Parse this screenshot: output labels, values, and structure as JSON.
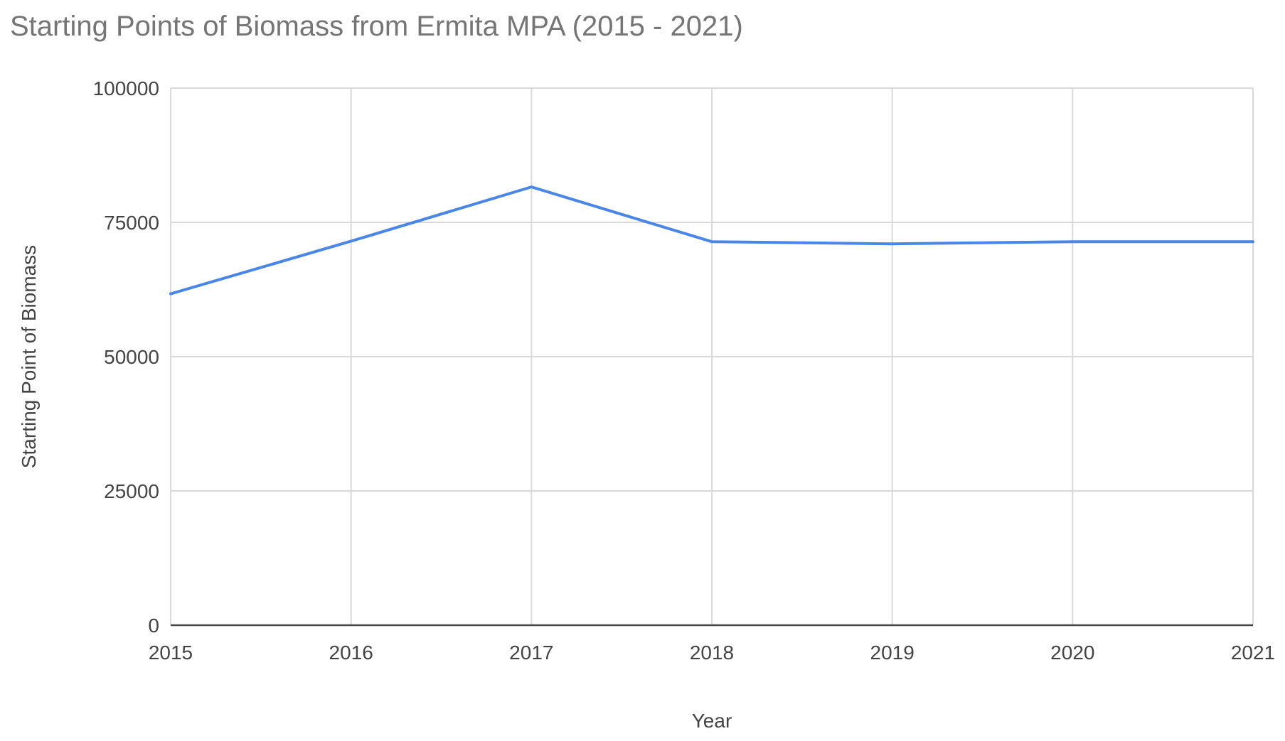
{
  "chart_data": {
    "type": "line",
    "title": "Starting Points of Biomass from Ermita MPA (2015 - 2021)",
    "xlabel": "Year",
    "ylabel": "Starting Point of Biomass",
    "x": [
      "2015",
      "2016",
      "2017",
      "2018",
      "2019",
      "2020",
      "2021"
    ],
    "series": [
      {
        "values": [
          61700,
          71500,
          81600,
          71400,
          71000,
          71400,
          71400
        ],
        "color": "#4a86e8"
      }
    ],
    "ylim": [
      0,
      100000
    ],
    "yticks": [
      "0",
      "25000",
      "50000",
      "75000",
      "100000"
    ],
    "grid": true,
    "legend": "none",
    "colors": {
      "gridline": "#d9d9d9",
      "baseline": "#444444",
      "title": "#757575",
      "text": "#444444"
    }
  }
}
